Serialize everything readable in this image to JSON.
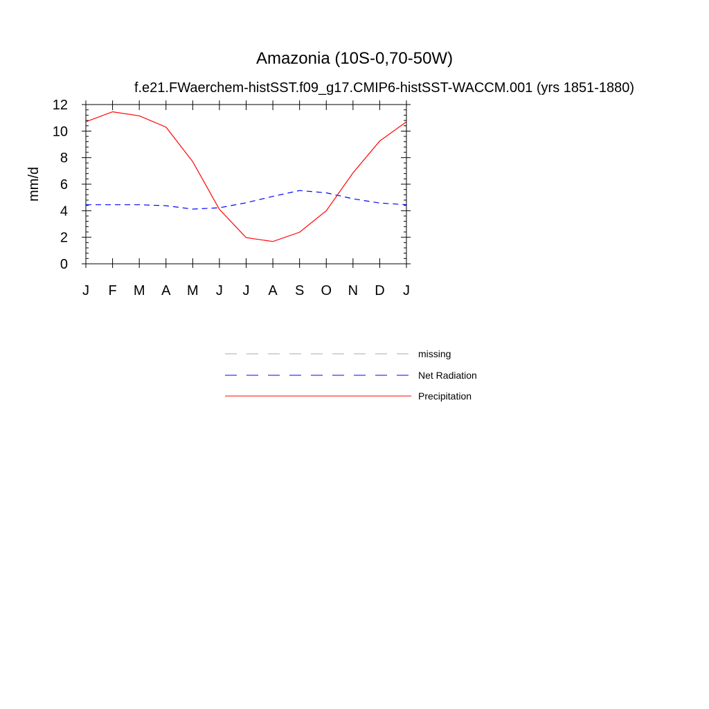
{
  "chart_data": {
    "type": "line",
    "title": "Amazonia (10S-0,70-50W)",
    "subtitle": "f.e21.FWaerchem-histSST.f09_g17.CMIP6-histSST-WACCM.001 (yrs 1851-1880)",
    "xlabel": "",
    "ylabel": "mm/d",
    "ylim": [
      0,
      12
    ],
    "yticks": [
      0,
      2,
      4,
      6,
      8,
      10,
      12
    ],
    "categories": [
      "J",
      "F",
      "M",
      "A",
      "M",
      "J",
      "J",
      "A",
      "S",
      "O",
      "N",
      "D",
      "J"
    ],
    "grid": false,
    "legend_position": "below",
    "series": [
      {
        "name": "Net Radiation",
        "color": "#0000ff",
        "dash": "dashed",
        "values": [
          4.45,
          4.45,
          4.45,
          4.38,
          4.12,
          4.22,
          4.6,
          5.08,
          5.52,
          5.35,
          4.9,
          4.58,
          4.45
        ]
      },
      {
        "name": "Precipitation",
        "color": "#ff0000",
        "dash": "solid",
        "values": [
          10.7,
          11.45,
          11.15,
          10.3,
          7.7,
          4.1,
          1.97,
          1.68,
          2.38,
          4.0,
          6.85,
          9.25,
          10.7
        ]
      }
    ],
    "legend": [
      {
        "label": "missing",
        "color": "#aaaaaa",
        "dash": "dashed"
      },
      {
        "label": "Net Radiation",
        "color": "#0000ff",
        "dash": "dashed"
      },
      {
        "label": "Precipitation",
        "color": "#ff0000",
        "dash": "solid"
      }
    ]
  }
}
